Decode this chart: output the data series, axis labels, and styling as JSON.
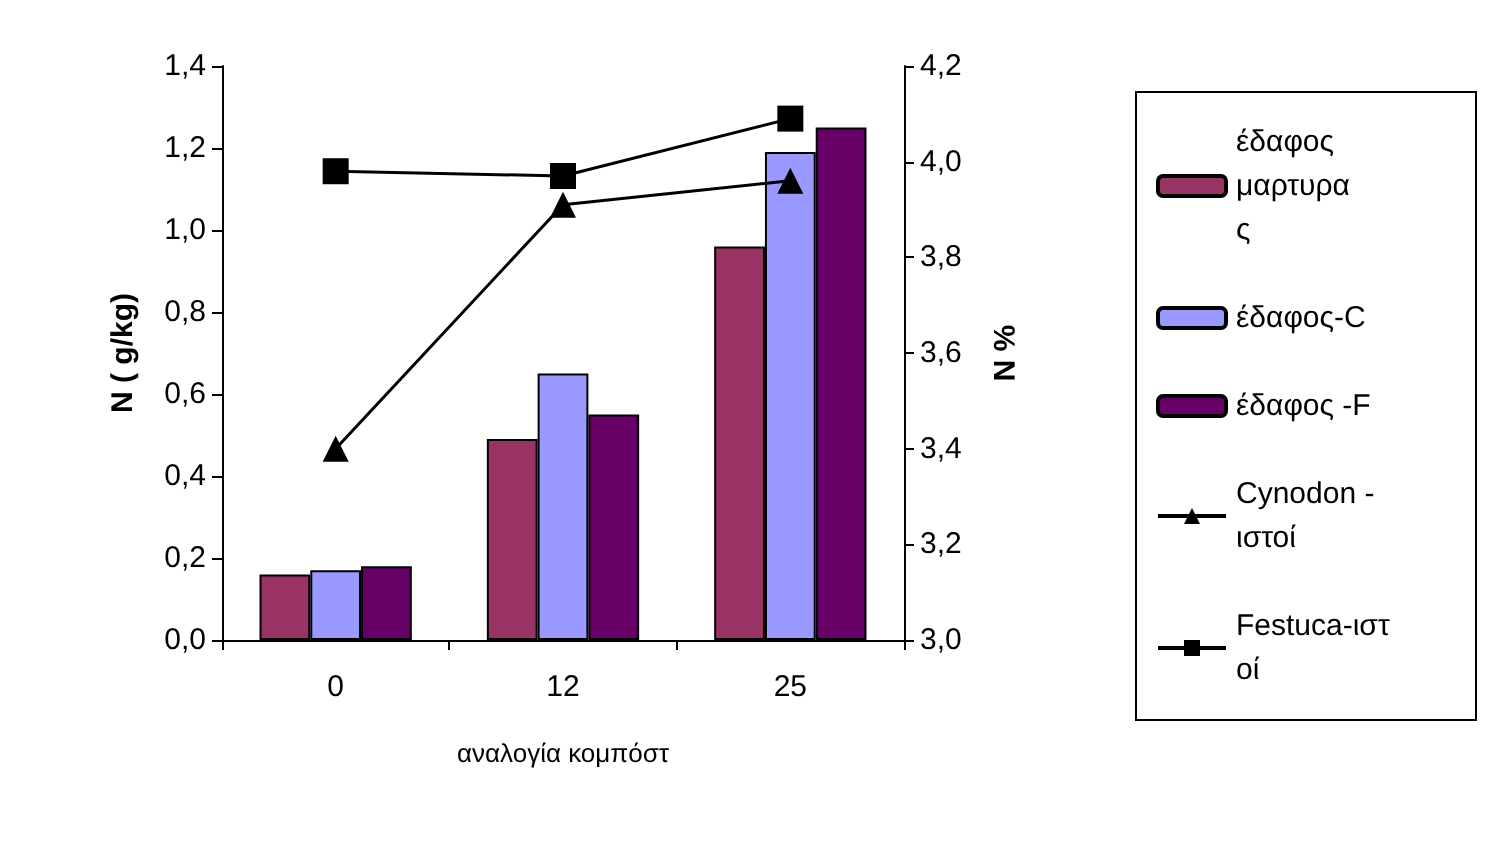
{
  "chart_data": {
    "type": "bar",
    "categories": [
      "0",
      "12",
      "25"
    ],
    "xlabel": "αναλογία κομπόστ",
    "ylabel": "N ( g/kg)",
    "y2label": "% N",
    "series": [
      {
        "name": "έδαφος μαρτυρας",
        "color": "#993366",
        "values": [
          0.16,
          0.49,
          0.96
        ]
      },
      {
        "name": "έδαφος-C",
        "color": "#9999ff",
        "values": [
          0.17,
          0.65,
          1.19
        ]
      },
      {
        "name": "έδαφος -F",
        "color": "#660066",
        "values": [
          0.18,
          0.55,
          1.25
        ]
      },
      {
        "name": "Cynodon - ιστοί",
        "type": "line",
        "axis": "y2",
        "marker": "triangle",
        "color": "#000000",
        "values": [
          3.4,
          3.91,
          3.96
        ]
      },
      {
        "name": "Festuca-ιστοί",
        "type": "line",
        "axis": "y2",
        "marker": "square",
        "color": "#000000",
        "values": [
          3.98,
          3.97,
          4.09
        ]
      }
    ],
    "ylim": [
      0,
      1.4
    ],
    "yticks": [
      {
        "value": 0,
        "label": "0,0"
      },
      {
        "value": 0.2,
        "label": "0,2"
      },
      {
        "value": 0.4,
        "label": "0,4"
      },
      {
        "value": 0.6,
        "label": "0,6"
      },
      {
        "value": 0.8,
        "label": "0,8"
      },
      {
        "value": 1,
        "label": "1,0"
      },
      {
        "value": 1.2,
        "label": "1,2"
      },
      {
        "value": 1.4,
        "label": "1,4"
      }
    ],
    "y2lim": [
      3,
      4.2
    ],
    "y2ticks": [
      {
        "value": 3,
        "label": "3,0"
      },
      {
        "value": 3.2,
        "label": "3,2"
      },
      {
        "value": 3.4,
        "label": "3,4"
      },
      {
        "value": 3.6,
        "label": "3,6"
      },
      {
        "value": 3.8,
        "label": "3,8"
      },
      {
        "value": 4,
        "label": "4,0"
      },
      {
        "value": 4.2,
        "label": "4,2"
      }
    ],
    "grid": false,
    "legend": "right",
    "line_style": "solid"
  }
}
